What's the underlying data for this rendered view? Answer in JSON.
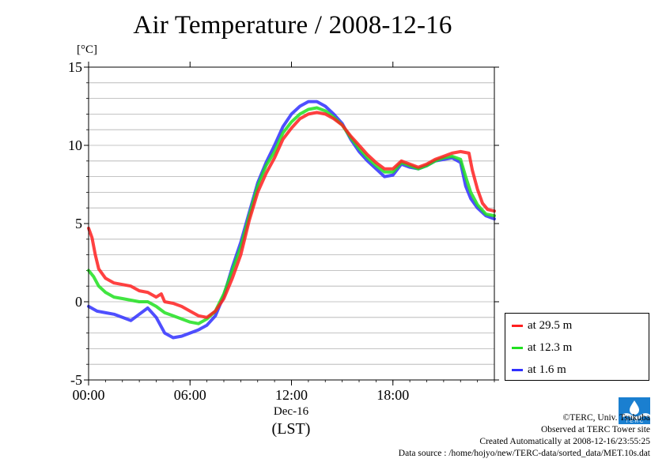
{
  "chart_data": {
    "type": "line",
    "title": "Air Temperature / 2008-12-16",
    "ylabel": "[°C]",
    "xlabel_date": "Dec-16",
    "xlabel_zone": "(LST)",
    "xlim": [
      0,
      24
    ],
    "ylim": [
      -5,
      15
    ],
    "yticks": [
      -5,
      0,
      5,
      10,
      15
    ],
    "ytick_labels": [
      "-5",
      "0",
      "5",
      "10",
      "15"
    ],
    "xticks": [
      0,
      6,
      12,
      18
    ],
    "xtick_labels": [
      "00:00",
      "06:00",
      "12:00",
      "18:00"
    ],
    "grid": true,
    "legend_position": "right-bottom",
    "series": [
      {
        "name": "at 29.5 m",
        "color": "#ff2020",
        "points": [
          [
            0,
            4.7
          ],
          [
            0.2,
            4.1
          ],
          [
            0.4,
            3.0
          ],
          [
            0.6,
            2.1
          ],
          [
            1.0,
            1.5
          ],
          [
            1.5,
            1.2
          ],
          [
            2.0,
            1.1
          ],
          [
            2.5,
            1.0
          ],
          [
            3.0,
            0.7
          ],
          [
            3.5,
            0.6
          ],
          [
            4.0,
            0.3
          ],
          [
            4.3,
            0.5
          ],
          [
            4.5,
            0.0
          ],
          [
            5.0,
            -0.1
          ],
          [
            5.5,
            -0.3
          ],
          [
            6.0,
            -0.6
          ],
          [
            6.5,
            -0.9
          ],
          [
            7.0,
            -1.0
          ],
          [
            7.5,
            -0.6
          ],
          [
            8.0,
            0.2
          ],
          [
            8.5,
            1.5
          ],
          [
            9.0,
            3.0
          ],
          [
            9.5,
            5.2
          ],
          [
            10.0,
            7.0
          ],
          [
            10.5,
            8.2
          ],
          [
            11.0,
            9.2
          ],
          [
            11.5,
            10.4
          ],
          [
            12.0,
            11.1
          ],
          [
            12.5,
            11.7
          ],
          [
            13.0,
            12.0
          ],
          [
            13.5,
            12.1
          ],
          [
            14.0,
            12.0
          ],
          [
            14.5,
            11.7
          ],
          [
            15.0,
            11.3
          ],
          [
            15.5,
            10.6
          ],
          [
            16.0,
            10.0
          ],
          [
            16.5,
            9.4
          ],
          [
            17.0,
            8.9
          ],
          [
            17.5,
            8.5
          ],
          [
            18.0,
            8.5
          ],
          [
            18.5,
            9.0
          ],
          [
            19.0,
            8.8
          ],
          [
            19.5,
            8.6
          ],
          [
            20.0,
            8.8
          ],
          [
            20.5,
            9.1
          ],
          [
            21.0,
            9.3
          ],
          [
            21.5,
            9.5
          ],
          [
            22.0,
            9.6
          ],
          [
            22.5,
            9.5
          ],
          [
            22.7,
            8.4
          ],
          [
            23.0,
            7.2
          ],
          [
            23.3,
            6.3
          ],
          [
            23.6,
            5.9
          ],
          [
            24.0,
            5.8
          ]
        ]
      },
      {
        "name": "at 12.3 m",
        "color": "#20e020",
        "points": [
          [
            0,
            2.0
          ],
          [
            0.3,
            1.6
          ],
          [
            0.6,
            1.0
          ],
          [
            1.0,
            0.6
          ],
          [
            1.5,
            0.3
          ],
          [
            2.0,
            0.2
          ],
          [
            2.5,
            0.1
          ],
          [
            3.0,
            0.0
          ],
          [
            3.5,
            0.0
          ],
          [
            4.0,
            -0.3
          ],
          [
            4.5,
            -0.7
          ],
          [
            5.0,
            -0.9
          ],
          [
            5.5,
            -1.1
          ],
          [
            6.0,
            -1.3
          ],
          [
            6.5,
            -1.4
          ],
          [
            7.0,
            -1.1
          ],
          [
            7.5,
            -0.6
          ],
          [
            8.0,
            0.5
          ],
          [
            8.5,
            2.0
          ],
          [
            9.0,
            3.5
          ],
          [
            9.5,
            5.5
          ],
          [
            10.0,
            7.4
          ],
          [
            10.5,
            8.7
          ],
          [
            11.0,
            9.6
          ],
          [
            11.5,
            10.8
          ],
          [
            12.0,
            11.5
          ],
          [
            12.5,
            12.0
          ],
          [
            13.0,
            12.3
          ],
          [
            13.5,
            12.4
          ],
          [
            14.0,
            12.2
          ],
          [
            14.5,
            11.8
          ],
          [
            15.0,
            11.3
          ],
          [
            15.5,
            10.5
          ],
          [
            16.0,
            9.8
          ],
          [
            16.5,
            9.2
          ],
          [
            17.0,
            8.7
          ],
          [
            17.5,
            8.3
          ],
          [
            18.0,
            8.3
          ],
          [
            18.5,
            8.9
          ],
          [
            19.0,
            8.7
          ],
          [
            19.5,
            8.5
          ],
          [
            20.0,
            8.7
          ],
          [
            20.5,
            9.0
          ],
          [
            21.0,
            9.2
          ],
          [
            21.5,
            9.3
          ],
          [
            22.0,
            9.1
          ],
          [
            22.3,
            8.0
          ],
          [
            22.6,
            7.0
          ],
          [
            23.0,
            6.2
          ],
          [
            23.5,
            5.6
          ],
          [
            24.0,
            5.5
          ]
        ]
      },
      {
        "name": "at 1.6 m",
        "color": "#3030ff",
        "points": [
          [
            0,
            -0.3
          ],
          [
            0.5,
            -0.6
          ],
          [
            1.0,
            -0.7
          ],
          [
            1.5,
            -0.8
          ],
          [
            2.0,
            -1.0
          ],
          [
            2.5,
            -1.2
          ],
          [
            3.0,
            -0.8
          ],
          [
            3.5,
            -0.4
          ],
          [
            4.0,
            -1.0
          ],
          [
            4.5,
            -2.0
          ],
          [
            5.0,
            -2.3
          ],
          [
            5.5,
            -2.2
          ],
          [
            6.0,
            -2.0
          ],
          [
            6.5,
            -1.8
          ],
          [
            7.0,
            -1.5
          ],
          [
            7.5,
            -0.9
          ],
          [
            8.0,
            0.4
          ],
          [
            8.5,
            2.2
          ],
          [
            9.0,
            3.8
          ],
          [
            9.5,
            5.7
          ],
          [
            10.0,
            7.6
          ],
          [
            10.5,
            8.9
          ],
          [
            11.0,
            10.0
          ],
          [
            11.5,
            11.2
          ],
          [
            12.0,
            12.0
          ],
          [
            12.5,
            12.5
          ],
          [
            13.0,
            12.8
          ],
          [
            13.5,
            12.8
          ],
          [
            14.0,
            12.5
          ],
          [
            14.5,
            12.0
          ],
          [
            15.0,
            11.4
          ],
          [
            15.5,
            10.4
          ],
          [
            16.0,
            9.6
          ],
          [
            16.5,
            9.0
          ],
          [
            17.0,
            8.5
          ],
          [
            17.5,
            8.0
          ],
          [
            18.0,
            8.1
          ],
          [
            18.5,
            8.8
          ],
          [
            19.0,
            8.6
          ],
          [
            19.5,
            8.5
          ],
          [
            20.0,
            8.7
          ],
          [
            20.5,
            9.0
          ],
          [
            21.0,
            9.1
          ],
          [
            21.5,
            9.2
          ],
          [
            22.0,
            8.9
          ],
          [
            22.3,
            7.4
          ],
          [
            22.6,
            6.6
          ],
          [
            23.0,
            6.0
          ],
          [
            23.5,
            5.5
          ],
          [
            24.0,
            5.3
          ]
        ]
      }
    ]
  },
  "credits": {
    "line1": "©TERC, Univ. Tsukuba",
    "line2": "Observed at TERC Tower site",
    "line3": "Created Automatically at 2008-12-16/23:55:25",
    "line4": "Data source : /home/hojyo/new/TERC-data/sorted_data/MET.10s.dat"
  },
  "logo": {
    "text": "T·E·R·C",
    "color": "#1a7fd0"
  }
}
